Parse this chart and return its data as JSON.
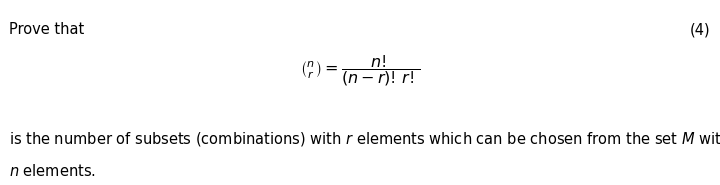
{
  "background_color": "#ffffff",
  "prove_that_text": "Prove that",
  "number_label": "(4)",
  "formula": "$\\binom{n}{r} = \\dfrac{n!}{(n-r)!\\,r!}$",
  "body_line1": "is the number of subsets (combinations) with $r$ elements which can be chosen from the set $M$ with",
  "body_line2": "$n$ elements.",
  "font_size_main": 10.5,
  "font_size_formula": 11.5,
  "fig_width": 7.2,
  "fig_height": 1.85,
  "dpi": 100
}
